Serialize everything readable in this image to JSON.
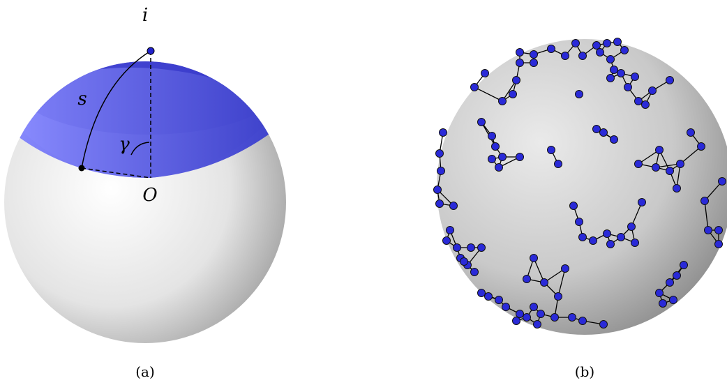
{
  "panel_a": {
    "labels": {
      "node": "i",
      "arc": "s",
      "angle": "γ",
      "origin": "O"
    },
    "caption": "(a)"
  },
  "panel_b": {
    "caption": "(b)"
  }
}
